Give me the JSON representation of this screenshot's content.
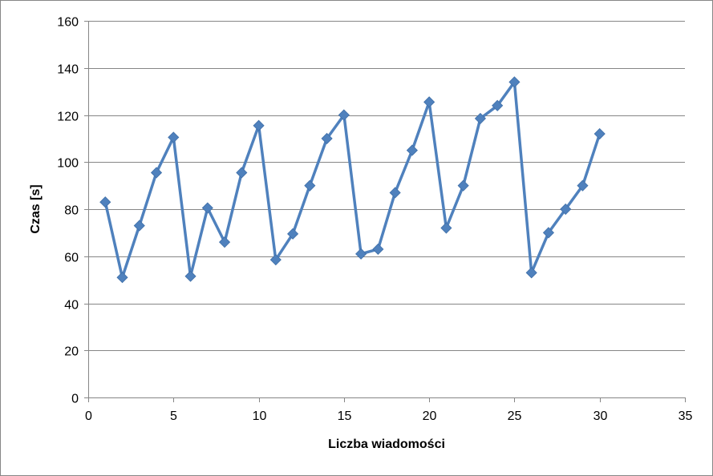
{
  "chart_data": {
    "type": "line",
    "title": "",
    "xlabel": "Liczba wiadomości",
    "ylabel": "Czas [s]",
    "xlim": [
      0,
      35
    ],
    "ylim": [
      0,
      160
    ],
    "x_ticks": [
      0,
      5,
      10,
      15,
      20,
      25,
      30,
      35
    ],
    "y_ticks": [
      0,
      20,
      40,
      60,
      80,
      100,
      120,
      140,
      160
    ],
    "grid": "horizontal",
    "legend": "none",
    "marker": "diamond",
    "color": "#4F81BD",
    "series": [
      {
        "x": [
          1,
          2,
          3,
          4,
          5,
          6,
          7,
          8,
          9,
          10,
          11,
          12,
          13,
          14,
          15,
          16,
          17,
          18,
          19,
          20,
          21,
          22,
          23,
          24,
          25,
          26,
          27,
          28,
          29,
          30
        ],
        "y": [
          83,
          51,
          73,
          95.5,
          110.5,
          51.5,
          80.5,
          66,
          95.5,
          115.5,
          58.5,
          69.5,
          90,
          110,
          120,
          61,
          63,
          87,
          105,
          125.5,
          72,
          90,
          118.5,
          124,
          134,
          53,
          70,
          80,
          90,
          112
        ]
      }
    ]
  }
}
